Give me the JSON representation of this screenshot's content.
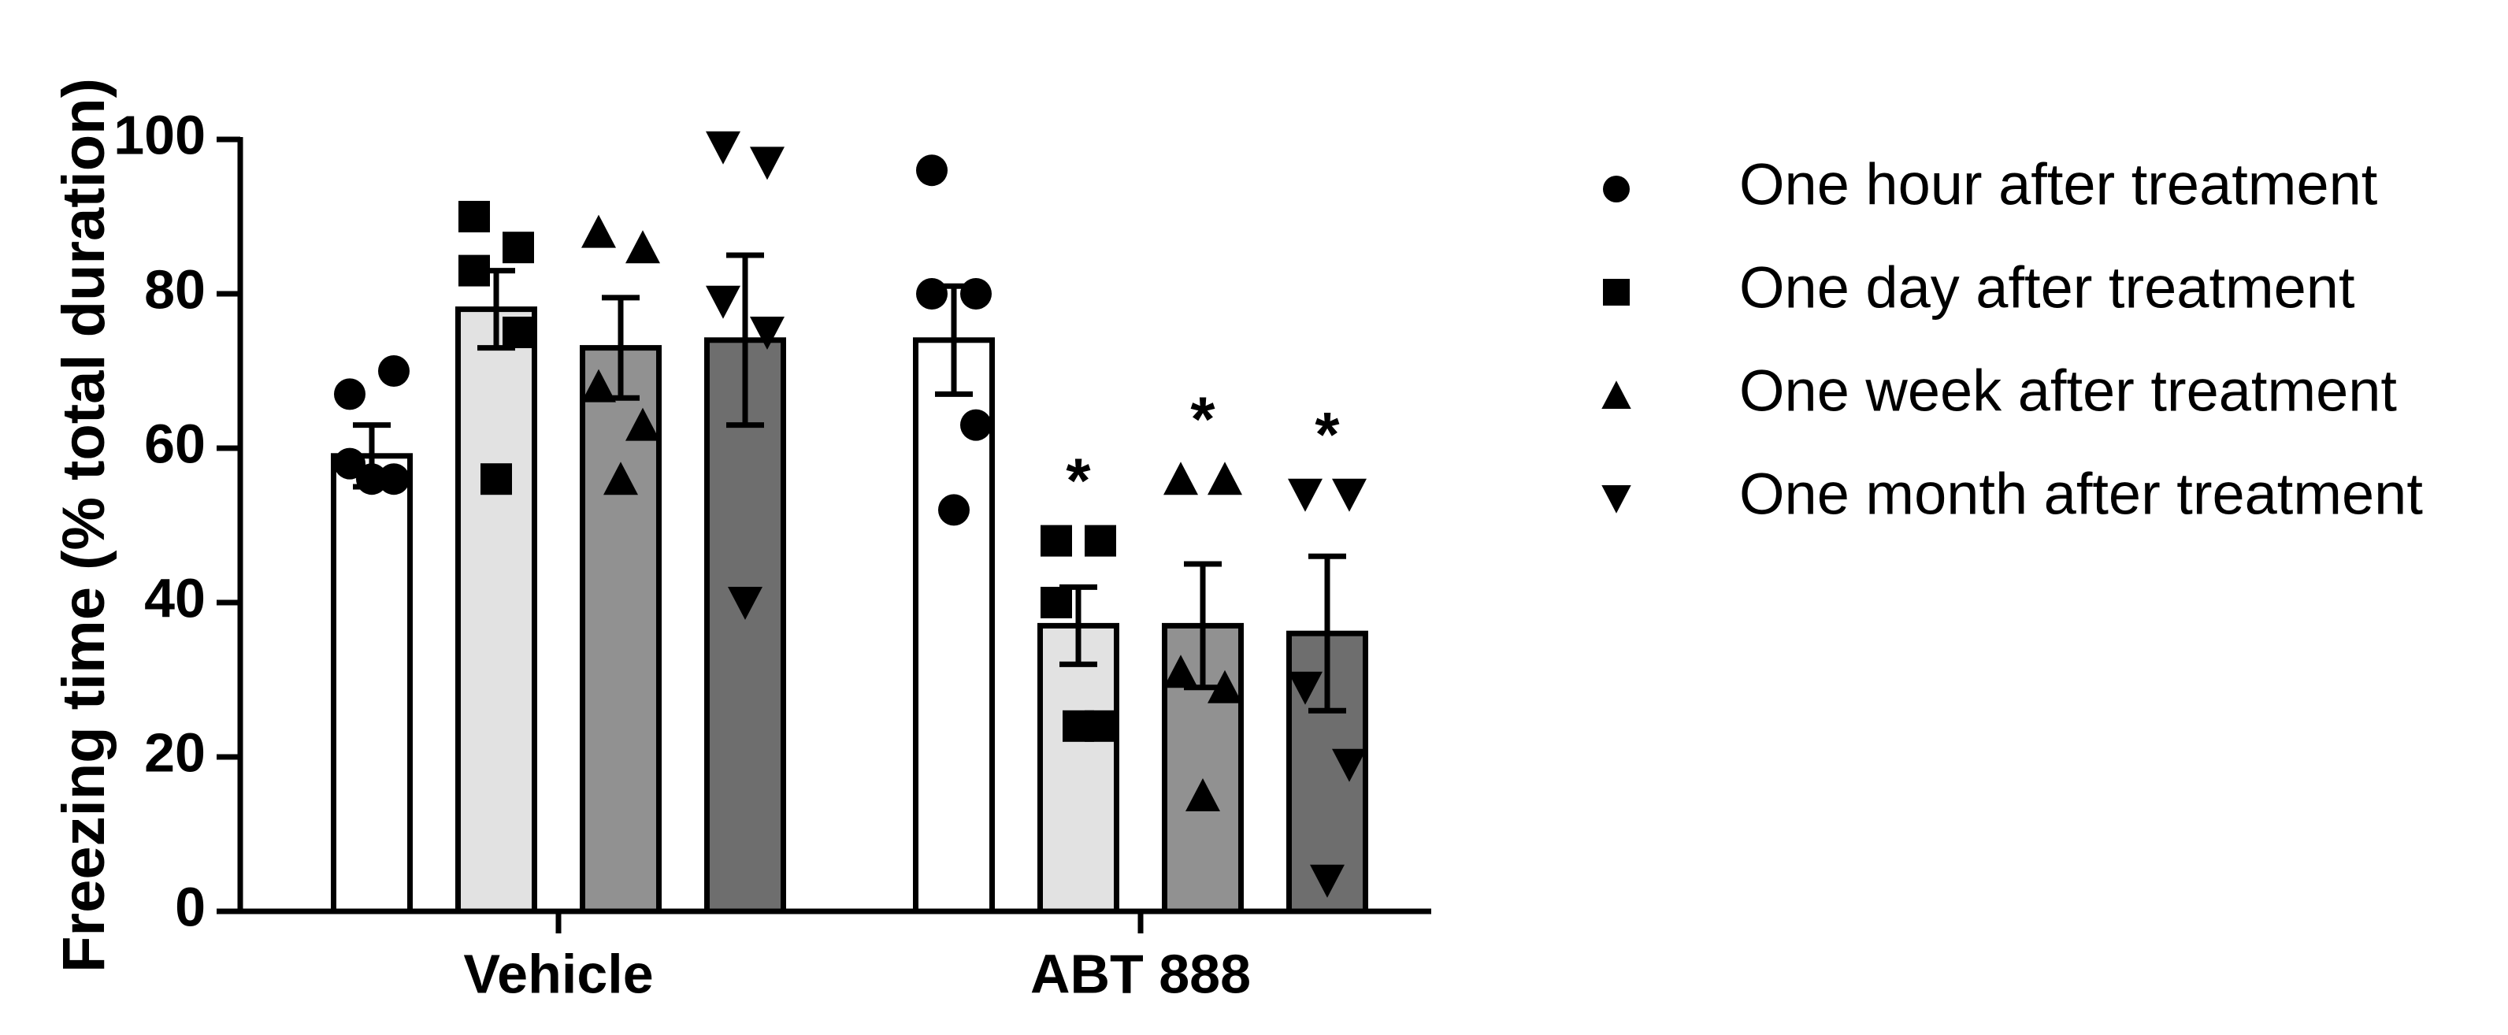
{
  "chart_data": {
    "type": "bar",
    "y_label": "Freezing time (% total duration)",
    "categories": [
      "Vehicle",
      "ABT 888"
    ],
    "ylim": [
      0,
      100
    ],
    "yticks": [
      0,
      20,
      40,
      60,
      80,
      100
    ],
    "series": [
      {
        "name": "One hour after treatment",
        "color": "#ffffff",
        "marker": "circle",
        "values": [
          59,
          74
        ],
        "errors": [
          4,
          7
        ],
        "points": [
          [
            67,
            70,
            58,
            56,
            56
          ],
          [
            96,
            80,
            80,
            63,
            52
          ]
        ]
      },
      {
        "name": "One day after treatment",
        "color": "#e2e2e2",
        "marker": "square",
        "values": [
          78,
          37
        ],
        "errors": [
          5,
          5
        ],
        "points": [
          [
            90,
            86,
            83,
            75,
            56
          ],
          [
            48,
            48,
            40,
            24,
            24
          ]
        ],
        "annotations": [
          null,
          "*"
        ]
      },
      {
        "name": "One week after treatment",
        "color": "#919191",
        "marker": "triangle-up",
        "values": [
          73,
          37
        ],
        "errors": [
          6.5,
          8
        ],
        "points": [
          [
            88,
            86,
            68,
            63,
            56
          ],
          [
            56,
            56,
            31,
            29,
            15
          ]
        ],
        "annotations": [
          null,
          "*"
        ]
      },
      {
        "name": "One month after treatment",
        "color": "#6e6e6e",
        "marker": "triangle-down",
        "values": [
          74,
          36
        ],
        "errors": [
          11,
          10
        ],
        "points": [
          [
            99,
            97,
            79,
            75,
            40
          ],
          [
            54,
            54,
            29,
            19,
            4
          ]
        ],
        "annotations": [
          null,
          "*"
        ]
      }
    ]
  }
}
